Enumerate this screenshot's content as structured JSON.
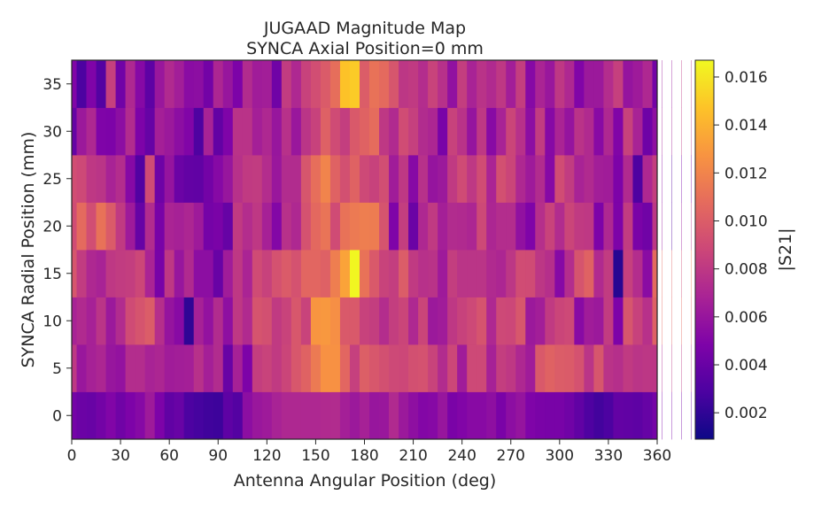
{
  "chart_data": {
    "type": "heatmap",
    "title": "JUGAAD Magnitude Map",
    "subtitle": "SYNCA Axial Position=0 mm",
    "xlabel": "Antenna Angular Position (deg)",
    "ylabel": "SYNCA Radial Position (mm)",
    "colorbar_label": "|S21|",
    "colormap": "plasma",
    "xlim": [
      0,
      360
    ],
    "ylim": [
      -2.5,
      37.5
    ],
    "x_ticks": [
      "0",
      "30",
      "60",
      "90",
      "120",
      "150",
      "180",
      "210",
      "240",
      "270",
      "300",
      "330",
      "360"
    ],
    "y_ticks": [
      "0",
      "5",
      "10",
      "15",
      "20",
      "25",
      "30",
      "35"
    ],
    "colorbar_ticks": [
      "0.002",
      "0.004",
      "0.006",
      "0.008",
      "0.010",
      "0.012",
      "0.014",
      "0.016"
    ],
    "value_range": [
      0.0009,
      0.0167
    ],
    "x_step_deg": 6,
    "y_positions": [
      0,
      5,
      10,
      15,
      20,
      25,
      30,
      35
    ],
    "values": [
      [
        0.0045,
        0.0041,
        0.004,
        0.0044,
        0.005,
        0.0043,
        0.0048,
        0.0052,
        0.0063,
        0.0048,
        0.0037,
        0.004,
        0.0029,
        0.0027,
        0.0025,
        0.0024,
        0.0036,
        0.0032,
        0.0055,
        0.0061,
        0.0063,
        0.0068,
        0.0071,
        0.0071,
        0.0071,
        0.0071,
        0.0072,
        0.0073,
        0.0066,
        0.0062,
        0.0067,
        0.006,
        0.0061,
        0.0072,
        0.0062,
        0.0056,
        0.0051,
        0.0052,
        0.006,
        0.0047,
        0.005,
        0.0053,
        0.0053,
        0.0056,
        0.0047,
        0.0055,
        0.0059,
        0.0049,
        0.0047,
        0.0046,
        0.0046,
        0.0043,
        0.0037,
        0.003,
        0.0026,
        0.0029,
        0.0038,
        0.0037,
        0.0036,
        0.0039,
        0.0045,
        0.0047,
        0.0047,
        0.0044,
        0.004
      ],
      [
        0.008,
        0.0061,
        0.0067,
        0.007,
        0.006,
        0.0058,
        0.0074,
        0.0074,
        0.0068,
        0.007,
        0.0064,
        0.0065,
        0.0066,
        0.0076,
        0.0066,
        0.0073,
        0.004,
        0.0067,
        0.0048,
        0.0083,
        0.0086,
        0.0081,
        0.0087,
        0.0097,
        0.0103,
        0.0115,
        0.0126,
        0.0126,
        0.0105,
        0.0084,
        0.0101,
        0.0097,
        0.0093,
        0.0089,
        0.0088,
        0.0093,
        0.0094,
        0.0086,
        0.0073,
        0.0088,
        0.0064,
        0.0089,
        0.0089,
        0.0067,
        0.0083,
        0.008,
        0.0071,
        0.0064,
        0.0098,
        0.0103,
        0.01,
        0.0099,
        0.0094,
        0.0078,
        0.0096,
        0.0077,
        0.0075,
        0.0081,
        0.0078,
        0.0079,
        0.0079,
        0.007,
        0.008,
        0.0079,
        0.0077
      ],
      [
        0.0068,
        0.0072,
        0.0067,
        0.0078,
        0.0062,
        0.0073,
        0.009,
        0.0095,
        0.01,
        0.0075,
        0.0059,
        0.0053,
        0.002,
        0.0067,
        0.0058,
        0.0073,
        0.0056,
        0.008,
        0.0072,
        0.0095,
        0.0093,
        0.0081,
        0.0086,
        0.0097,
        0.0086,
        0.0128,
        0.0129,
        0.0125,
        0.0098,
        0.0098,
        0.0085,
        0.0083,
        0.0074,
        0.0083,
        0.0087,
        0.0071,
        0.0087,
        0.0062,
        0.0064,
        0.008,
        0.0085,
        0.0089,
        0.0095,
        0.0071,
        0.0089,
        0.0088,
        0.0097,
        0.0062,
        0.0065,
        0.0081,
        0.0087,
        0.0089,
        0.0053,
        0.0064,
        0.0062,
        0.0082,
        0.0048,
        0.0096,
        0.0085,
        0.0076,
        0.0102,
        0.0106,
        0.0103,
        0.0106,
        0.0106
      ],
      [
        0.0096,
        0.0082,
        0.0071,
        0.0068,
        0.008,
        0.0082,
        0.0083,
        0.0088,
        0.0069,
        0.0046,
        0.008,
        0.006,
        0.0072,
        0.0055,
        0.0055,
        0.004,
        0.0064,
        0.008,
        0.0069,
        0.009,
        0.0085,
        0.0094,
        0.0099,
        0.0094,
        0.0105,
        0.0105,
        0.0102,
        0.0117,
        0.0134,
        0.0166,
        0.0111,
        0.0098,
        0.0086,
        0.0083,
        0.01,
        0.0081,
        0.0076,
        0.0077,
        0.0063,
        0.0083,
        0.0078,
        0.0078,
        0.0078,
        0.0072,
        0.007,
        0.0079,
        0.0091,
        0.009,
        0.0079,
        0.0075,
        0.0052,
        0.0074,
        0.0095,
        0.0103,
        0.0072,
        0.0082,
        0.0017,
        0.0084,
        0.0074,
        0.0054,
        0.0107,
        0.0107,
        0.0102,
        0.009,
        0.0117
      ],
      [
        0.0091,
        0.0107,
        0.0092,
        0.0111,
        0.0099,
        0.0081,
        0.0063,
        0.0039,
        0.0073,
        0.0046,
        0.0069,
        0.0067,
        0.007,
        0.0063,
        0.0045,
        0.0047,
        0.0039,
        0.0081,
        0.0074,
        0.008,
        0.0067,
        0.0051,
        0.0076,
        0.0071,
        0.0094,
        0.0106,
        0.0112,
        0.009,
        0.0111,
        0.0115,
        0.0117,
        0.0116,
        0.0095,
        0.0049,
        0.0083,
        0.0041,
        0.0071,
        0.0081,
        0.0066,
        0.0073,
        0.0072,
        0.007,
        0.0089,
        0.007,
        0.0074,
        0.0074,
        0.0057,
        0.0049,
        0.0075,
        0.0086,
        0.0073,
        0.0087,
        0.0081,
        0.008,
        0.0048,
        0.0071,
        0.0048,
        0.0082,
        0.0047,
        0.0043,
        0.0079,
        0.0059,
        0.0032,
        0.0061,
        0.0075
      ],
      [
        0.0092,
        0.0089,
        0.008,
        0.0078,
        0.0068,
        0.0074,
        0.0052,
        0.0031,
        0.009,
        0.0042,
        0.0059,
        0.0041,
        0.0038,
        0.0037,
        0.0044,
        0.0052,
        0.006,
        0.0076,
        0.0081,
        0.0082,
        0.0074,
        0.0061,
        0.0073,
        0.0073,
        0.0096,
        0.0109,
        0.012,
        0.0103,
        0.0093,
        0.0103,
        0.0089,
        0.0085,
        0.0092,
        0.0064,
        0.008,
        0.0052,
        0.0076,
        0.0059,
        0.0062,
        0.0081,
        0.009,
        0.008,
        0.0091,
        0.0069,
        0.0093,
        0.0087,
        0.0071,
        0.0063,
        0.0073,
        0.0052,
        0.0091,
        0.0082,
        0.0068,
        0.0072,
        0.0065,
        0.0064,
        0.0048,
        0.0072,
        0.003,
        0.0071,
        0.0083,
        0.0054,
        0.0033,
        0.0046,
        0.0045
      ],
      [
        0.0039,
        0.0062,
        0.0071,
        0.0049,
        0.0048,
        0.0055,
        0.0073,
        0.0048,
        0.0039,
        0.0066,
        0.0062,
        0.0055,
        0.005,
        0.003,
        0.0068,
        0.0038,
        0.0049,
        0.0077,
        0.0077,
        0.0066,
        0.0071,
        0.006,
        0.0076,
        0.0061,
        0.0078,
        0.0085,
        0.0102,
        0.009,
        0.0083,
        0.0098,
        0.0103,
        0.0108,
        0.008,
        0.0072,
        0.0091,
        0.0084,
        0.0073,
        0.007,
        0.0046,
        0.0085,
        0.0077,
        0.0059,
        0.008,
        0.0053,
        0.0068,
        0.0087,
        0.0076,
        0.0055,
        0.0082,
        0.0052,
        0.0069,
        0.0059,
        0.0077,
        0.0072,
        0.0053,
        0.0071,
        0.005,
        0.0085,
        0.0068,
        0.0042,
        0.0056,
        0.0065,
        0.0066,
        0.008,
        0.0078
      ],
      [
        0.005,
        0.0029,
        0.0049,
        0.0032,
        0.0084,
        0.0043,
        0.0071,
        0.0052,
        0.0036,
        0.0061,
        0.0072,
        0.0065,
        0.0054,
        0.0055,
        0.0044,
        0.007,
        0.006,
        0.0048,
        0.0073,
        0.0064,
        0.0065,
        0.0043,
        0.0082,
        0.0071,
        0.0085,
        0.0092,
        0.0099,
        0.0109,
        0.0147,
        0.015,
        0.01,
        0.0111,
        0.0107,
        0.0096,
        0.0079,
        0.0081,
        0.0074,
        0.0086,
        0.0076,
        0.0057,
        0.0083,
        0.0068,
        0.0077,
        0.0072,
        0.008,
        0.0065,
        0.0083,
        0.0052,
        0.0069,
        0.0061,
        0.008,
        0.0071,
        0.005,
        0.0062,
        0.0062,
        0.0074,
        0.0084,
        0.0059,
        0.0063,
        0.0071,
        0.0044,
        0.0062,
        0.0061,
        0.008,
        0.0078
      ]
    ]
  }
}
